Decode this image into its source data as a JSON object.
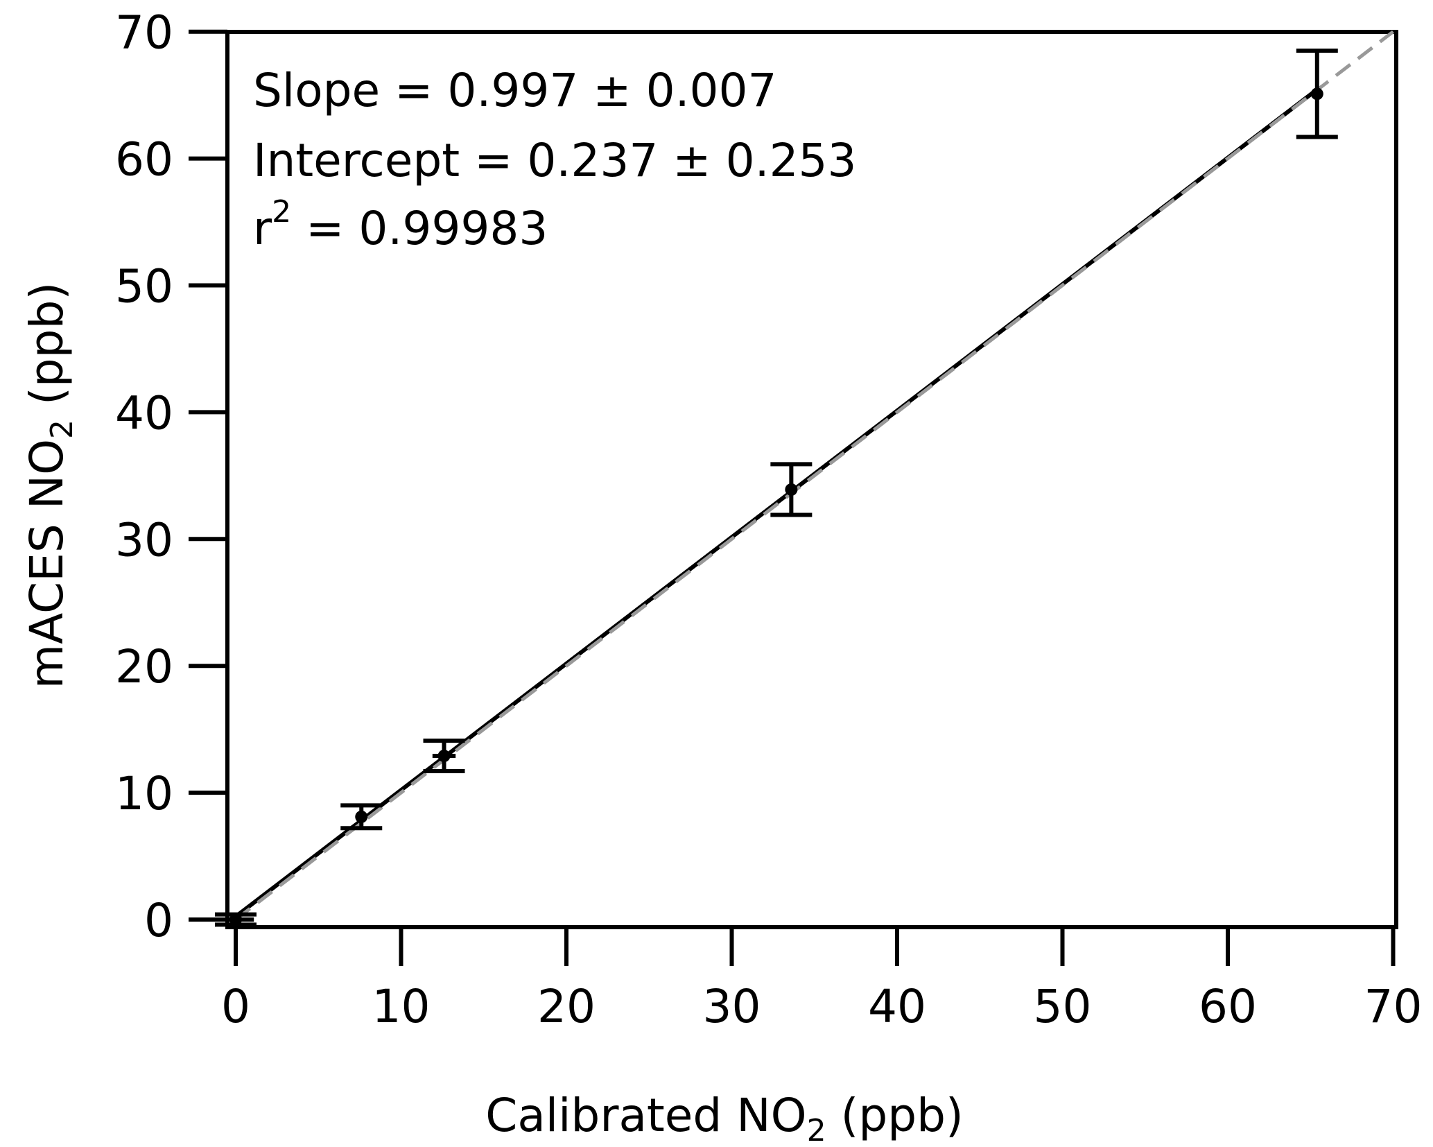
{
  "chart_data": {
    "type": "scatter",
    "xlabel": {
      "prefix": "Calibrated NO",
      "sub": "2",
      "suffix": " (ppb)"
    },
    "ylabel": {
      "prefix": "mACES NO",
      "sub": "2",
      "suffix": " (ppb)"
    },
    "xlim": [
      0,
      70
    ],
    "ylim": [
      0,
      70
    ],
    "xticks": [
      0,
      10,
      20,
      30,
      40,
      50,
      60,
      70
    ],
    "yticks": [
      0,
      10,
      20,
      30,
      40,
      50,
      60,
      70
    ],
    "grid": false,
    "annotations": {
      "slope": "Slope = 0.997 ± 0.007",
      "intercept": "Intercept = 0.237 ± 0.253",
      "r2_prefix": "r",
      "r2_exp": "2",
      "r2_value": " = 0.99983"
    },
    "points": [
      {
        "x": 0.0,
        "y": 0.0,
        "yerr": 0.4,
        "xerr": 1.1
      },
      {
        "x": 7.6,
        "y": 8.1,
        "yerr": 0.9,
        "xerr": 0.2
      },
      {
        "x": 12.6,
        "y": 12.9,
        "yerr": 1.2,
        "xerr": 0.7
      },
      {
        "x": 33.6,
        "y": 33.9,
        "yerr": 2.0,
        "xerr": 0.2
      },
      {
        "x": 65.4,
        "y": 65.1,
        "yerr": 3.4,
        "xerr": 0.2
      }
    ],
    "fit_line": {
      "slope": 0.997,
      "intercept": 0.237,
      "x_range": [
        0,
        65.4
      ],
      "color": "#000000",
      "style": "solid"
    },
    "reference_line": {
      "slope": 1,
      "intercept": 0,
      "x_range": [
        0,
        70
      ],
      "color": "#999999",
      "style": "dashed"
    }
  }
}
